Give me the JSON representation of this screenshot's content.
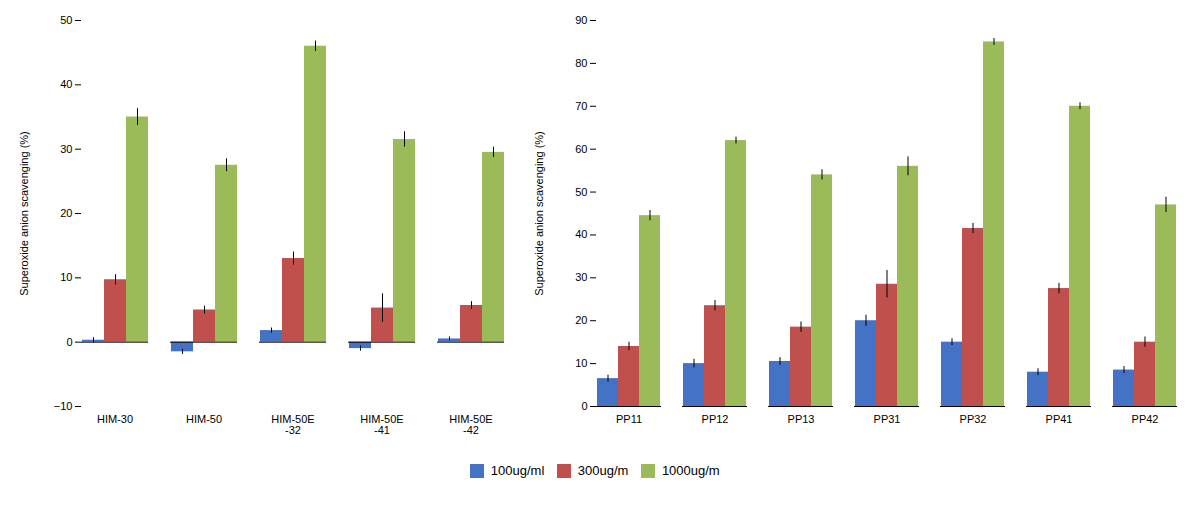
{
  "chart_data": [
    {
      "type": "bar",
      "categories": [
        "HIM-30",
        "HIM-50",
        "HIM-50E\n-32",
        "HIM-50E\n-41",
        "HIM-50E\n-42"
      ],
      "series": [
        {
          "name": "100ug/ml",
          "color": "#4472C4",
          "values": [
            0.3,
            -1.5,
            1.8,
            -1.0,
            0.5
          ],
          "errors": [
            0.4,
            0.4,
            0.4,
            0.4,
            0.3
          ]
        },
        {
          "name": "300ug/m",
          "color": "#C0504D",
          "values": [
            9.7,
            5.0,
            13.0,
            5.3,
            5.7
          ],
          "errors": [
            0.8,
            0.6,
            1.0,
            2.2,
            0.6
          ]
        },
        {
          "name": "1000ug/m",
          "color": "#9BBB59",
          "values": [
            35.0,
            27.5,
            46.0,
            31.5,
            29.5
          ],
          "errors": [
            1.3,
            1.0,
            0.8,
            1.2,
            0.8
          ]
        }
      ],
      "ylabel": "Superoxide anion scavenging (%)",
      "ylim": [
        -10,
        50
      ],
      "yticks": [
        -10,
        0,
        10,
        20,
        30,
        40,
        50
      ],
      "grid": false,
      "legend": "bottom"
    },
    {
      "type": "bar",
      "categories": [
        "PP11",
        "PP12",
        "PP13",
        "PP31",
        "PP32",
        "PP41",
        "PP42"
      ],
      "series": [
        {
          "name": "100ug/ml",
          "color": "#4472C4",
          "values": [
            6.5,
            10.0,
            10.5,
            20.0,
            15.0,
            8.0,
            8.5
          ],
          "errors": [
            0.8,
            1.0,
            0.9,
            1.3,
            0.8,
            0.8,
            0.8
          ]
        },
        {
          "name": "300ug/m",
          "color": "#C0504D",
          "values": [
            14.0,
            23.5,
            18.5,
            28.5,
            41.5,
            27.5,
            15.0
          ],
          "errors": [
            1.0,
            1.2,
            1.2,
            3.2,
            1.2,
            1.2,
            1.2
          ]
        },
        {
          "name": "1000ug/m",
          "color": "#9BBB59",
          "values": [
            44.5,
            62.0,
            54.0,
            56.0,
            85.0,
            70.0,
            47.0
          ],
          "errors": [
            1.2,
            0.8,
            1.2,
            2.2,
            0.8,
            0.8,
            1.8
          ]
        }
      ],
      "ylabel": "Superoxide anion scavenging (%)",
      "ylim": [
        0,
        90
      ],
      "yticks": [
        0,
        10,
        20,
        30,
        40,
        50,
        60,
        70,
        80,
        90
      ],
      "grid": false,
      "legend": "bottom"
    }
  ]
}
